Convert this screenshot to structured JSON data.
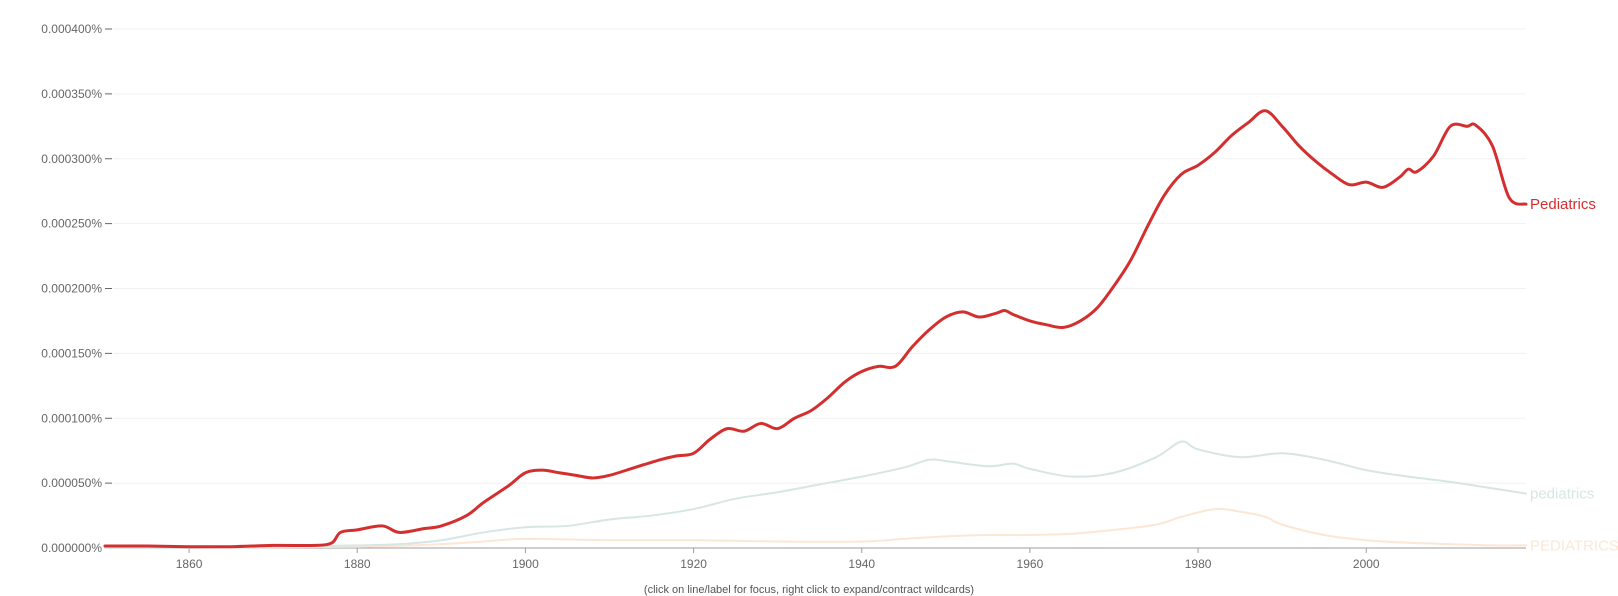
{
  "chart_data": {
    "type": "line",
    "title": "",
    "xlabel": "",
    "ylabel": "",
    "xlim": [
      1850,
      2019
    ],
    "ylim": [
      0,
      0.0004
    ],
    "y_ticks": [
      0,
      5e-05,
      0.0001,
      0.00015,
      0.0002,
      0.00025,
      0.0003,
      0.00035,
      0.0004
    ],
    "y_tick_labels": [
      "0.000000%",
      "0.000050%",
      "0.000100%",
      "0.000150%",
      "0.000200%",
      "0.000250%",
      "0.000300%",
      "0.000350%",
      "0.000400%"
    ],
    "x_ticks": [
      1860,
      1880,
      1900,
      1920,
      1940,
      1960,
      1980,
      2000
    ],
    "x_tick_labels": [
      "1860",
      "1880",
      "1900",
      "1920",
      "1940",
      "1960",
      "1980",
      "2000"
    ],
    "grid": true,
    "legend": "labels at right end of each line",
    "series": [
      {
        "name": "Pediatrics",
        "color": "#d32f2f",
        "x": [
          1850,
          1855,
          1860,
          1865,
          1870,
          1875,
          1877,
          1878,
          1880,
          1883,
          1885,
          1888,
          1890,
          1893,
          1895,
          1898,
          1900,
          1902,
          1904,
          1906,
          1908,
          1910,
          1913,
          1916,
          1918,
          1920,
          1922,
          1924,
          1926,
          1928,
          1930,
          1932,
          1934,
          1936,
          1938,
          1940,
          1942,
          1944,
          1946,
          1948,
          1950,
          1952,
          1954,
          1956,
          1957,
          1958,
          1960,
          1962,
          1964,
          1966,
          1968,
          1970,
          1972,
          1974,
          1976,
          1978,
          1980,
          1982,
          1984,
          1986,
          1988,
          1990,
          1992,
          1994,
          1996,
          1998,
          2000,
          2002,
          2004,
          2005,
          2006,
          2008,
          2010,
          2012,
          2013,
          2015,
          2017,
          2019
        ],
        "values": [
          1.5e-06,
          1.5e-06,
          1e-06,
          1e-06,
          2e-06,
          2e-06,
          4e-06,
          1.2e-05,
          1.4e-05,
          1.7e-05,
          1.2e-05,
          1.5e-05,
          1.7e-05,
          2.5e-05,
          3.5e-05,
          4.8e-05,
          5.8e-05,
          6e-05,
          5.8e-05,
          5.6e-05,
          5.4e-05,
          5.6e-05,
          6.2e-05,
          6.8e-05,
          7.1e-05,
          7.3e-05,
          8.4e-05,
          9.2e-05,
          9e-05,
          9.6e-05,
          9.2e-05,
          0.0001,
          0.000106,
          0.000116,
          0.000128,
          0.000136,
          0.00014,
          0.00014,
          0.000155,
          0.000168,
          0.000178,
          0.000182,
          0.000178,
          0.000181,
          0.000183,
          0.00018,
          0.000175,
          0.000172,
          0.00017,
          0.000175,
          0.000185,
          0.000202,
          0.000222,
          0.000248,
          0.000272,
          0.000288,
          0.000295,
          0.000305,
          0.000318,
          0.000328,
          0.000337,
          0.000325,
          0.00031,
          0.000298,
          0.000288,
          0.00028,
          0.000282,
          0.000278,
          0.000286,
          0.000292,
          0.00029,
          0.000302,
          0.000325,
          0.000325,
          0.000326,
          0.00031,
          0.00027,
          0.000265
        ]
      },
      {
        "name": "pediatrics",
        "color": "#d6e6e4",
        "x": [
          1850,
          1860,
          1870,
          1880,
          1885,
          1890,
          1895,
          1900,
          1905,
          1910,
          1915,
          1920,
          1925,
          1930,
          1935,
          1940,
          1945,
          1948,
          1950,
          1955,
          1958,
          1960,
          1965,
          1970,
          1975,
          1978,
          1980,
          1985,
          1990,
          1995,
          2000,
          2005,
          2010,
          2015,
          2019
        ],
        "values": [
          0,
          0,
          1e-06,
          2e-06,
          3e-06,
          6e-06,
          1.2e-05,
          1.6e-05,
          1.7e-05,
          2.2e-05,
          2.5e-05,
          3e-05,
          3.8e-05,
          4.3e-05,
          4.9e-05,
          5.5e-05,
          6.2e-05,
          6.8e-05,
          6.7e-05,
          6.3e-05,
          6.5e-05,
          6.1e-05,
          5.5e-05,
          5.8e-05,
          7e-05,
          8.2e-05,
          7.6e-05,
          7e-05,
          7.3e-05,
          6.8e-05,
          6e-05,
          5.5e-05,
          5.1e-05,
          4.6e-05,
          4.2e-05
        ]
      },
      {
        "name": "PEDIATRICS",
        "color": "#fbe7d4",
        "x": [
          1850,
          1880,
          1890,
          1895,
          1900,
          1910,
          1920,
          1930,
          1940,
          1945,
          1950,
          1955,
          1960,
          1965,
          1970,
          1975,
          1978,
          1982,
          1985,
          1988,
          1990,
          1995,
          2000,
          2005,
          2010,
          2015,
          2019
        ],
        "values": [
          0,
          1e-06,
          3e-06,
          5e-06,
          7e-06,
          6e-06,
          6e-06,
          5e-06,
          5e-06,
          7e-06,
          9e-06,
          1e-05,
          1e-05,
          1.1e-05,
          1.4e-05,
          1.8e-05,
          2.4e-05,
          3e-05,
          2.8e-05,
          2.4e-05,
          1.8e-05,
          1e-05,
          6e-06,
          4e-06,
          3e-06,
          2e-06,
          2e-06
        ]
      }
    ]
  },
  "footer_note": "(click on line/label for focus, right click to expand/contract wildcards)"
}
